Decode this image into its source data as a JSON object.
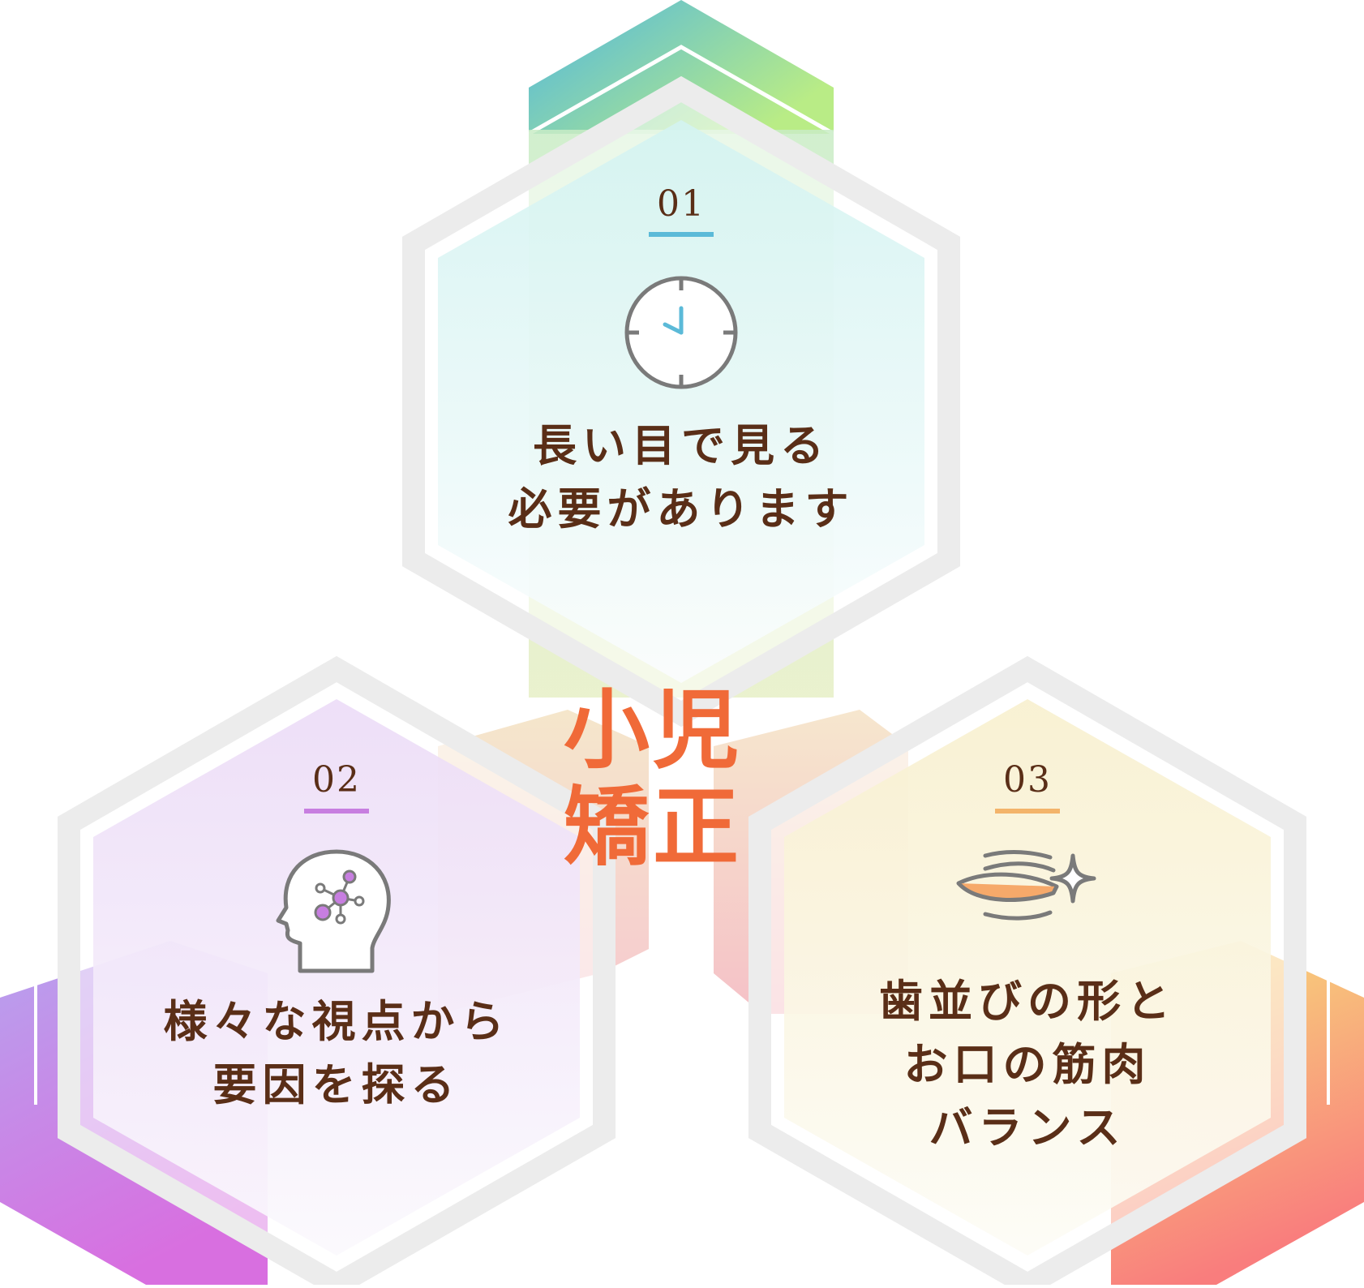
{
  "diagram": {
    "center": {
      "lines": [
        "小児",
        "矯正"
      ],
      "color": "#f06a38"
    },
    "items": [
      {
        "number": "01",
        "icon": "clock-icon",
        "accent": "#5bbad8",
        "lines": [
          "長い目で見る",
          "必要があります"
        ],
        "gradient": [
          "#4fb6e0",
          "#b9ec86"
        ]
      },
      {
        "number": "02",
        "icon": "head-network-icon",
        "accent": "#c77ee0",
        "lines": [
          "様々な視点から",
          "要因を探る"
        ],
        "gradient": [
          "#b7a2ee",
          "#d86fe0"
        ]
      },
      {
        "number": "03",
        "icon": "teeth-sparkle-icon",
        "accent": "#f3b46a",
        "lines": [
          "歯並びの形と",
          "お口の筋肉",
          "バランス"
        ],
        "gradient": [
          "#f8e27a",
          "#f97d7d"
        ]
      }
    ],
    "text_color": "#5a2e17"
  }
}
